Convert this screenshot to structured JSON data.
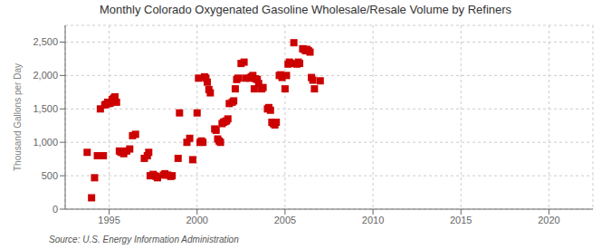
{
  "chart_data": {
    "type": "scatter",
    "title": "Monthly Colorado Oxygenated Gasoline Wholesale/Resale Volume by Refiners",
    "ylabel": "Thousand Gallons per Day",
    "annotations": [
      "Source: U.S. Energy Information Administration"
    ],
    "color": "#cc0000",
    "marker": "square",
    "grid": true,
    "xlim": [
      1992.5,
      2022.5
    ],
    "xticks": [
      1995,
      2000,
      2005,
      2010,
      2015,
      2020
    ],
    "ylim": [
      0,
      2750
    ],
    "yticks": [
      0,
      500,
      {
        "value": 1000,
        "label": "1,000"
      },
      {
        "value": 1500,
        "label": "1,500"
      },
      {
        "value": 2000,
        "label": "2,000"
      },
      {
        "value": 2500,
        "label": "2,500"
      }
    ],
    "x": [
      1993.75,
      1994.0,
      1994.17,
      1994.33,
      1994.5,
      1994.67,
      1994.75,
      1994.83,
      1994.92,
      1995.0,
      1995.08,
      1995.17,
      1995.25,
      1995.33,
      1995.42,
      1995.58,
      1995.67,
      1995.83,
      1996.0,
      1996.17,
      1996.33,
      1996.5,
      1997.0,
      1997.17,
      1997.25,
      1997.33,
      1997.5,
      1997.58,
      1997.67,
      1997.75,
      1998.08,
      1998.17,
      1998.33,
      1998.5,
      1998.58,
      1998.92,
      1999.0,
      1999.42,
      1999.58,
      1999.75,
      2000.0,
      2000.08,
      2000.17,
      2000.25,
      2000.33,
      2000.42,
      2000.5,
      2000.58,
      2000.67,
      2000.75,
      2001.0,
      2001.08,
      2001.17,
      2001.25,
      2001.33,
      2001.42,
      2001.5,
      2001.58,
      2001.67,
      2001.75,
      2001.83,
      2002.0,
      2002.08,
      2002.17,
      2002.25,
      2002.33,
      2002.5,
      2002.67,
      2002.75,
      2003.0,
      2003.08,
      2003.17,
      2003.25,
      2003.33,
      2003.42,
      2003.5,
      2003.67,
      2003.75,
      2004.0,
      2004.08,
      2004.17,
      2004.25,
      2004.33,
      2004.42,
      2004.5,
      2004.67,
      2004.75,
      2004.83,
      2005.0,
      2005.08,
      2005.17,
      2005.25,
      2005.33,
      2005.5,
      2005.67,
      2005.75,
      2005.83,
      2006.0,
      2006.08,
      2006.17,
      2006.25,
      2006.33,
      2006.42,
      2006.5,
      2006.58,
      2006.67,
      2007.0
    ],
    "values": [
      850,
      170,
      470,
      800,
      1500,
      800,
      1560,
      1570,
      1600,
      1580,
      1590,
      1640,
      1660,
      1680,
      1600,
      870,
      850,
      830,
      870,
      900,
      1100,
      1120,
      760,
      800,
      850,
      500,
      520,
      500,
      490,
      470,
      510,
      530,
      510,
      490,
      500,
      760,
      1440,
      1000,
      1060,
      740,
      1440,
      1960,
      1000,
      1020,
      1000,
      1980,
      1960,
      1900,
      1790,
      1740,
      1200,
      1180,
      1050,
      1020,
      1000,
      1280,
      1300,
      1310,
      1320,
      1350,
      1580,
      1600,
      1620,
      1800,
      1940,
      1960,
      2180,
      2200,
      1960,
      1960,
      1980,
      2000,
      1800,
      1950,
      1940,
      1880,
      1800,
      1820,
      1500,
      1520,
      1480,
      1300,
      1280,
      1260,
      1300,
      2000,
      2010,
      1970,
      1800,
      2000,
      2170,
      2200,
      2180,
      2490,
      2170,
      2200,
      2180,
      2400,
      2390,
      2370,
      2390,
      2370,
      2350,
      1970,
      1930,
      1800,
      1920
    ]
  }
}
